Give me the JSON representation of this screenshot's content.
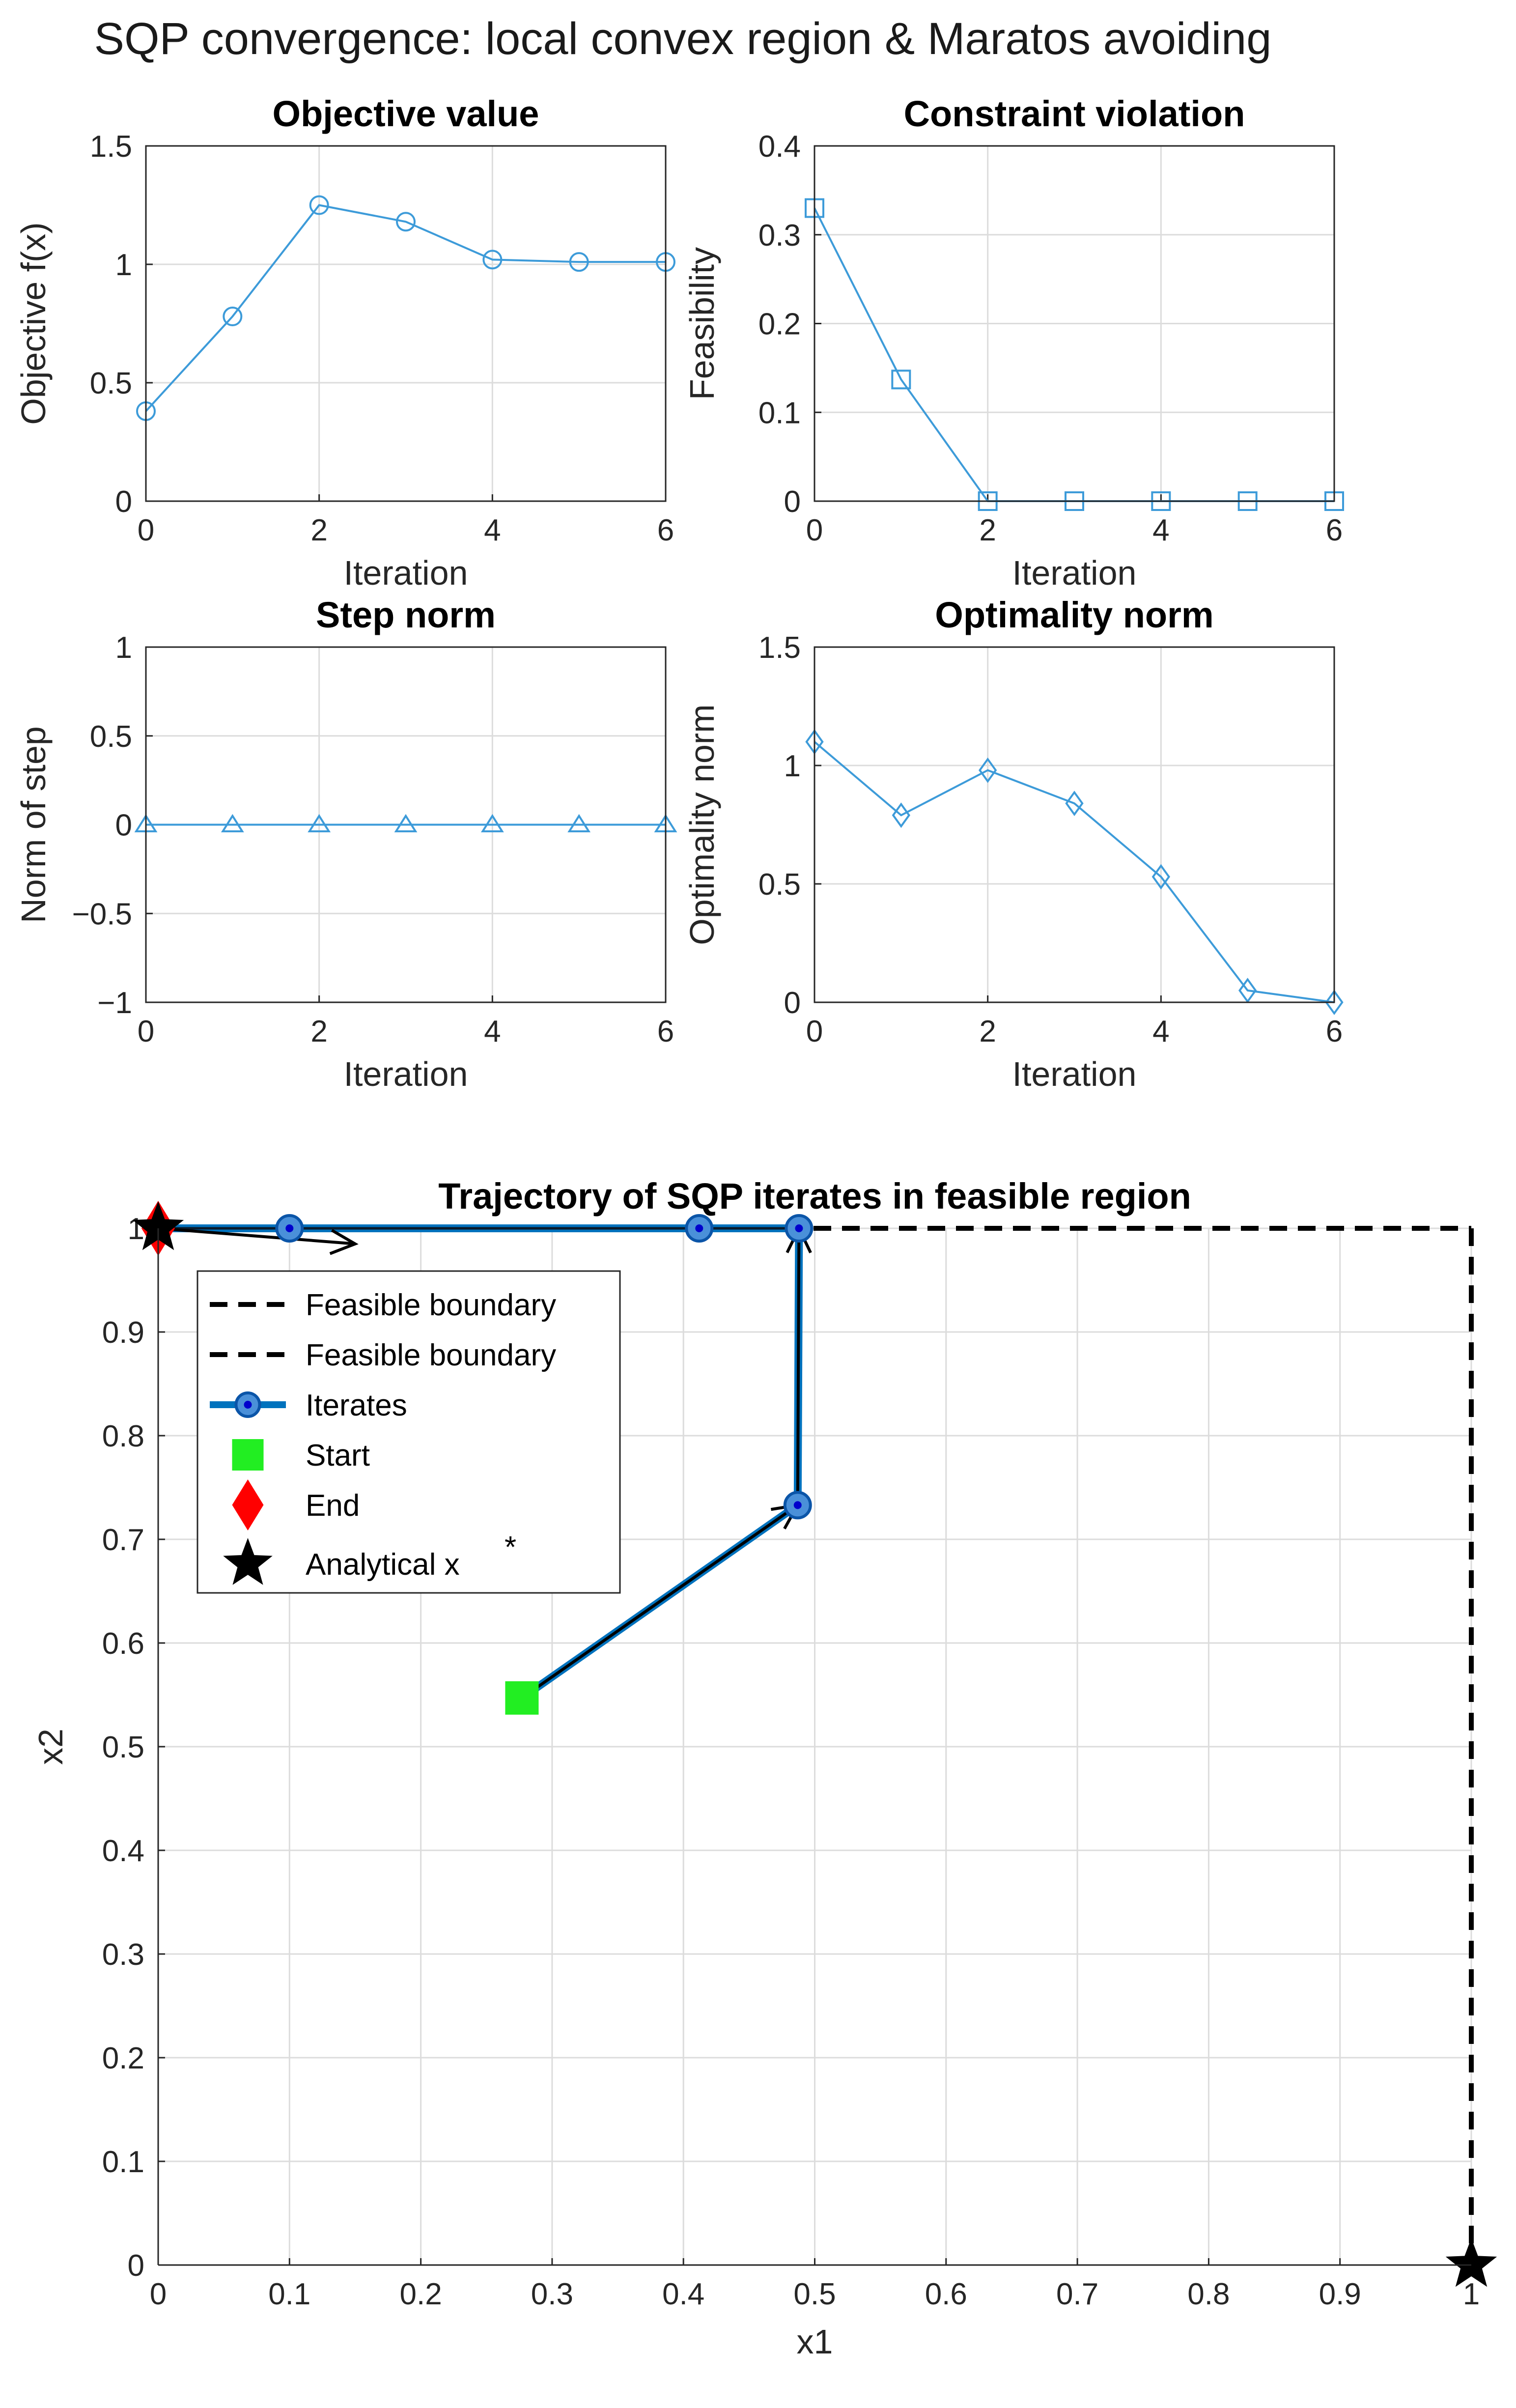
{
  "suptitle": "SQP convergence: local convex region & Maratos avoiding",
  "colors": {
    "series": "#3d9bd9",
    "iterates_line": "#0072bd",
    "iterates_marker_face": "#1f6fbf",
    "iterates_marker_edge": "#0b55a8",
    "start": "#22ee22",
    "end": "#ff0000",
    "analytical": "#000000",
    "boundary": "#000000"
  },
  "chart_data": [
    {
      "id": "objective",
      "type": "line",
      "title": "Objective value",
      "xlabel": "Iteration",
      "ylabel": "Objective f(x)",
      "marker": "circle",
      "xlim": [
        0,
        6
      ],
      "ylim": [
        0,
        1.5
      ],
      "xticks": [
        0,
        2,
        4,
        6
      ],
      "yticks": [
        0,
        0.5,
        1,
        1.5
      ],
      "xtick_labels": [
        "0",
        "2",
        "4",
        "6"
      ],
      "ytick_labels": [
        "0",
        "0.5",
        "1",
        "1.5"
      ],
      "grid": true,
      "x": [
        0,
        1,
        2,
        3,
        4,
        5,
        6
      ],
      "y": [
        0.38,
        0.78,
        1.25,
        1.18,
        1.02,
        1.01,
        1.01
      ]
    },
    {
      "id": "feasibility",
      "type": "line",
      "title": "Constraint violation",
      "xlabel": "Iteration",
      "ylabel": "Feasibility",
      "marker": "square",
      "xlim": [
        0,
        6
      ],
      "ylim": [
        0,
        0.4
      ],
      "xticks": [
        0,
        2,
        4,
        6
      ],
      "yticks": [
        0,
        0.1,
        0.2,
        0.3,
        0.4
      ],
      "xtick_labels": [
        "0",
        "2",
        "4",
        "6"
      ],
      "ytick_labels": [
        "0",
        "0.1",
        "0.2",
        "0.3",
        "0.4"
      ],
      "grid": true,
      "x": [
        0,
        1,
        2,
        3,
        4,
        5,
        6
      ],
      "y": [
        0.33,
        0.137,
        0.0,
        0.0,
        0.0,
        0.0,
        0.0
      ]
    },
    {
      "id": "step",
      "type": "line",
      "title": "Step norm",
      "xlabel": "Iteration",
      "ylabel": "Norm of step",
      "marker": "triangle",
      "xlim": [
        0,
        6
      ],
      "ylim": [
        -1,
        1
      ],
      "xticks": [
        0,
        2,
        4,
        6
      ],
      "yticks": [
        -1,
        -0.5,
        0,
        0.5,
        1
      ],
      "xtick_labels": [
        "0",
        "2",
        "4",
        "6"
      ],
      "ytick_labels": [
        "−1",
        "−0.5",
        "0",
        "0.5",
        "1"
      ],
      "grid": true,
      "x": [
        0,
        1,
        2,
        3,
        4,
        5,
        6
      ],
      "y": [
        0,
        0,
        0,
        0,
        0,
        0,
        0
      ]
    },
    {
      "id": "optimality",
      "type": "line",
      "title": "Optimality norm",
      "xlabel": "Iteration",
      "ylabel": "Optimality norm",
      "marker": "diamond",
      "xlim": [
        0,
        6
      ],
      "ylim": [
        0,
        1.5
      ],
      "xticks": [
        0,
        2,
        4,
        6
      ],
      "yticks": [
        0,
        0.5,
        1,
        1.5
      ],
      "xtick_labels": [
        "0",
        "2",
        "4",
        "6"
      ],
      "ytick_labels": [
        "0",
        "0.5",
        "1",
        "1.5"
      ],
      "grid": true,
      "x": [
        0,
        1,
        2,
        3,
        4,
        5,
        6
      ],
      "y": [
        1.1,
        0.79,
        0.98,
        0.84,
        0.53,
        0.05,
        0.0
      ]
    },
    {
      "id": "trajectory",
      "type": "line",
      "title": "Trajectory of SQP iterates in feasible region",
      "xlabel": "x1",
      "ylabel": "x2",
      "xlim": [
        0,
        1
      ],
      "ylim": [
        0,
        1
      ],
      "xticks": [
        0,
        0.1,
        0.2,
        0.3,
        0.4,
        0.5,
        0.6,
        0.7,
        0.8,
        0.9,
        1
      ],
      "yticks": [
        0,
        0.1,
        0.2,
        0.3,
        0.4,
        0.5,
        0.6,
        0.7,
        0.8,
        0.9,
        1
      ],
      "xtick_labels": [
        "0",
        "0.1",
        "0.2",
        "0.3",
        "0.4",
        "0.5",
        "0.6",
        "0.7",
        "0.8",
        "0.9",
        "1"
      ],
      "ytick_labels": [
        "0",
        "0.1",
        "0.2",
        "0.3",
        "0.4",
        "0.5",
        "0.6",
        "0.7",
        "0.8",
        "0.9",
        "1"
      ],
      "grid": true,
      "legend_placement": "top-left",
      "boundaries": [
        {
          "name": "Feasible boundary",
          "x": [
            0,
            1
          ],
          "y": [
            1,
            1
          ]
        },
        {
          "name": "Feasible boundary",
          "x": [
            1,
            1
          ],
          "y": [
            1,
            0
          ]
        }
      ],
      "iterates": {
        "name": "Iterates",
        "x": [
          0.277,
          0.487,
          0.488,
          0.412,
          0.1,
          0.0
        ],
        "y": [
          0.547,
          0.733,
          1.0,
          1.0,
          1.0,
          1.0
        ]
      },
      "start": {
        "name": "Start",
        "x": 0.277,
        "y": 0.547
      },
      "end": {
        "name": "End",
        "x": 0.0,
        "y": 1.0
      },
      "analytical": {
        "name": "Analytical x",
        "superscript": "*",
        "points": [
          {
            "x": 0.0,
            "y": 1.0
          },
          {
            "x": 1.0,
            "y": 0.0
          }
        ]
      },
      "arrows": [
        {
          "x": [
            0.277,
            0.487
          ],
          "y": [
            0.547,
            0.733
          ]
        },
        {
          "x": [
            0.487,
            0.488
          ],
          "y": [
            0.733,
            1.0
          ]
        },
        {
          "x": [
            0.0,
            0.15
          ],
          "y": [
            1.0,
            0.985
          ]
        }
      ]
    }
  ]
}
